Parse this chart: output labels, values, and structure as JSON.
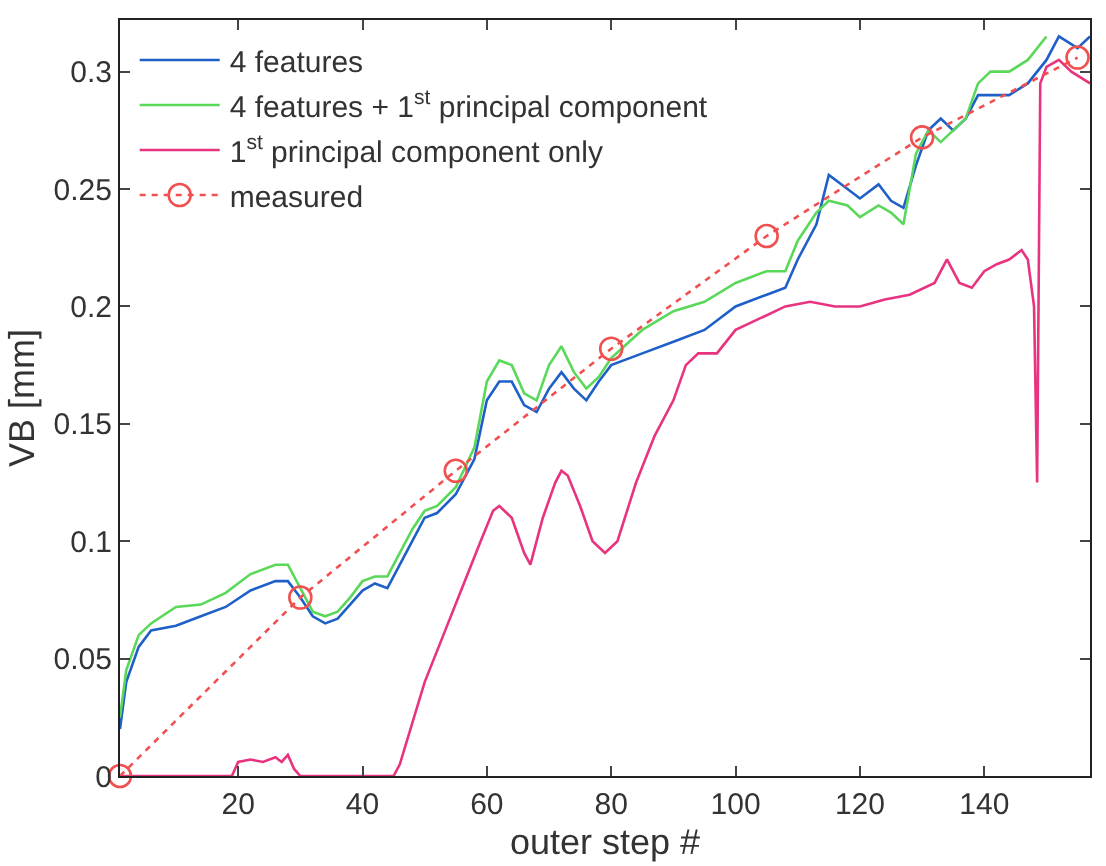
{
  "chart_data": {
    "type": "line",
    "xlabel": "outer step #",
    "ylabel": "VB [mm]",
    "xlim": [
      1,
      157
    ],
    "xticks": [
      20,
      40,
      60,
      80,
      100,
      120,
      140
    ],
    "ylim": [
      0,
      0.322
    ],
    "yticks": [
      0,
      0.05,
      0.1,
      0.15,
      0.2,
      0.25,
      0.3
    ],
    "legend": "top left",
    "series": [
      {
        "name": "4 features",
        "color": "#1f5fc8",
        "line_style": "solid",
        "marker": "none",
        "x": [
          1,
          2,
          4,
          6,
          10,
          14,
          18,
          22,
          26,
          28,
          30,
          32,
          34,
          36,
          38,
          40,
          42,
          44,
          46,
          48,
          50,
          52,
          55,
          58,
          60,
          62,
          64,
          66,
          68,
          70,
          72,
          74,
          76,
          78,
          80,
          85,
          90,
          95,
          100,
          105,
          108,
          110,
          113,
          115,
          118,
          120,
          123,
          125,
          127,
          129,
          131,
          133,
          135,
          137,
          139,
          141,
          144,
          147,
          150,
          152,
          155,
          157
        ],
        "values": [
          0.02,
          0.04,
          0.055,
          0.062,
          0.064,
          0.068,
          0.072,
          0.079,
          0.083,
          0.083,
          0.076,
          0.068,
          0.065,
          0.067,
          0.073,
          0.079,
          0.082,
          0.08,
          0.09,
          0.1,
          0.11,
          0.112,
          0.12,
          0.135,
          0.16,
          0.168,
          0.168,
          0.158,
          0.155,
          0.165,
          0.172,
          0.165,
          0.16,
          0.168,
          0.175,
          0.18,
          0.185,
          0.19,
          0.2,
          0.205,
          0.208,
          0.22,
          0.235,
          0.256,
          0.25,
          0.246,
          0.252,
          0.245,
          0.242,
          0.26,
          0.275,
          0.28,
          0.275,
          0.28,
          0.29,
          0.29,
          0.29,
          0.295,
          0.305,
          0.315,
          0.31,
          0.315
        ]
      },
      {
        "name": "4 features + 1$^{st}$ principal component",
        "color": "#5ad85a",
        "line_style": "solid",
        "marker": "none",
        "x": [
          1,
          2,
          4,
          6,
          10,
          14,
          18,
          22,
          26,
          28,
          30,
          32,
          34,
          36,
          38,
          40,
          42,
          44,
          46,
          48,
          50,
          52,
          55,
          58,
          60,
          62,
          64,
          66,
          68,
          70,
          72,
          74,
          76,
          78,
          80,
          85,
          90,
          95,
          100,
          105,
          108,
          110,
          113,
          115,
          118,
          120,
          123,
          125,
          127,
          129,
          131,
          133,
          135,
          137,
          139,
          141,
          144,
          147,
          150
        ],
        "values": [
          0.025,
          0.045,
          0.06,
          0.065,
          0.072,
          0.073,
          0.078,
          0.086,
          0.09,
          0.09,
          0.08,
          0.07,
          0.068,
          0.07,
          0.076,
          0.083,
          0.085,
          0.085,
          0.095,
          0.105,
          0.113,
          0.115,
          0.123,
          0.14,
          0.168,
          0.177,
          0.175,
          0.163,
          0.16,
          0.175,
          0.183,
          0.172,
          0.165,
          0.17,
          0.178,
          0.19,
          0.198,
          0.202,
          0.21,
          0.215,
          0.215,
          0.228,
          0.24,
          0.245,
          0.243,
          0.238,
          0.243,
          0.24,
          0.235,
          0.265,
          0.275,
          0.27,
          0.275,
          0.28,
          0.295,
          0.3,
          0.3,
          0.305,
          0.315
        ]
      },
      {
        "name": "1$^{st}$ principal component only",
        "color": "#e8337f",
        "line_style": "solid",
        "marker": "none",
        "x": [
          1,
          19,
          20,
          22,
          24,
          26,
          27,
          28,
          29,
          30,
          45,
          46,
          50,
          53,
          56,
          59,
          61,
          62,
          64,
          66,
          67,
          69,
          71,
          72,
          73,
          75,
          77,
          79,
          81,
          84,
          87,
          90,
          92,
          94,
          97,
          100,
          104,
          108,
          112,
          116,
          120,
          124,
          128,
          132,
          134,
          136,
          138,
          140,
          142,
          144,
          146,
          147,
          148,
          148.5,
          149,
          150,
          152,
          154,
          157
        ],
        "values": [
          0,
          0,
          0.006,
          0.007,
          0.006,
          0.008,
          0.006,
          0.009,
          0.003,
          0,
          0,
          0.005,
          0.04,
          0.06,
          0.08,
          0.1,
          0.113,
          0.115,
          0.11,
          0.095,
          0.09,
          0.11,
          0.125,
          0.13,
          0.128,
          0.115,
          0.1,
          0.095,
          0.1,
          0.125,
          0.145,
          0.16,
          0.175,
          0.18,
          0.18,
          0.19,
          0.195,
          0.2,
          0.202,
          0.2,
          0.2,
          0.203,
          0.205,
          0.21,
          0.22,
          0.21,
          0.208,
          0.215,
          0.218,
          0.22,
          0.224,
          0.22,
          0.2,
          0.125,
          0.295,
          0.302,
          0.305,
          0.3,
          0.295
        ]
      },
      {
        "name": "measured",
        "color": "#f05050",
        "line_style": "dotted",
        "marker": "circle",
        "x": [
          1,
          30,
          55,
          80,
          105,
          130,
          155
        ],
        "values": [
          0,
          0.076,
          0.13,
          0.182,
          0.23,
          0.272,
          0.306
        ]
      }
    ]
  }
}
